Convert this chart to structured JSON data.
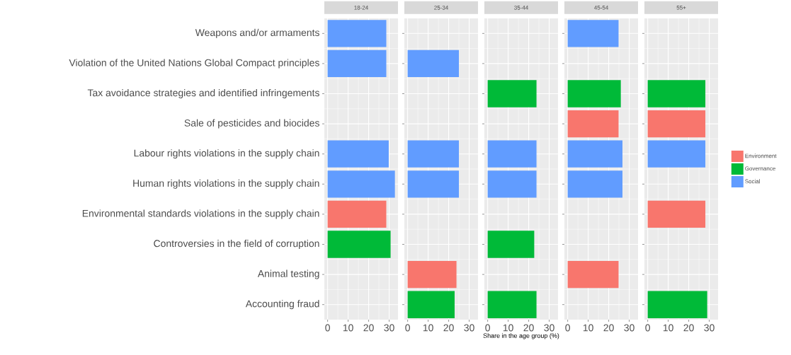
{
  "chart_data": [
    {
      "type": "bar",
      "orientation": "horizontal",
      "title": "18-24",
      "categories": [
        "Weapons and/or armaments",
        "Violation of the United Nations Global Compact principles",
        "Tax avoidance strategies and identified infringements",
        "Sale of pesticides and biocides",
        "Labour rights violations in the supply chain",
        "Human rights violations in the supply chain",
        "Environmental standards violations in the supply chain",
        "Controversies in the field of corruption",
        "Animal testing",
        "Accounting fraud"
      ],
      "series": [
        {
          "color": "#f8766d",
          "values": [
            null,
            null,
            null,
            null,
            null,
            null,
            28.6,
            null,
            null,
            null
          ]
        },
        {
          "color": "#00ba38",
          "values": [
            null,
            null,
            null,
            null,
            null,
            null,
            null,
            30.7,
            null,
            null
          ]
        },
        {
          "color": "#619cff",
          "values": [
            28.6,
            28.6,
            null,
            null,
            29.8,
            32.8,
            null,
            null,
            null,
            null
          ]
        }
      ],
      "xlim": [
        -1.6,
        34.3
      ],
      "xticks": [
        0,
        10,
        20,
        30
      ],
      "grid": true
    },
    {
      "type": "bar",
      "orientation": "horizontal",
      "title": "25-34",
      "categories": [
        null,
        null,
        null,
        null,
        null,
        null,
        null,
        null,
        null,
        null
      ],
      "series": [
        {
          "color": "#f8766d",
          "values": [
            null,
            null,
            null,
            null,
            null,
            null,
            null,
            null,
            23.8,
            null
          ]
        },
        {
          "color": "#00ba38",
          "values": [
            null,
            null,
            null,
            null,
            null,
            null,
            null,
            null,
            null,
            22.9
          ]
        },
        {
          "color": "#619cff",
          "values": [
            null,
            25,
            null,
            null,
            25,
            25,
            null,
            null,
            null,
            null
          ]
        }
      ],
      "xlim": [
        -1.6,
        34.3
      ],
      "xticks": [
        0,
        10,
        20,
        30
      ],
      "grid": true,
      "tick_labels": "x"
    },
    {
      "type": "bar",
      "orientation": "horizontal",
      "title": "35-44",
      "xlabel": "Share in the age group (%)",
      "categories": [
        null,
        null,
        null,
        null,
        null,
        null,
        null,
        null,
        null,
        null
      ],
      "series": [
        {
          "color": "#00ba38",
          "values": [
            null,
            null,
            23.8,
            null,
            null,
            null,
            null,
            22.7,
            null,
            23.8
          ]
        },
        {
          "color": "#619cff",
          "values": [
            null,
            null,
            null,
            null,
            23.8,
            23.8,
            null,
            null,
            null,
            null
          ]
        }
      ],
      "xlim": [
        -1.6,
        34.3
      ],
      "xticks": [
        0,
        10,
        20,
        30
      ],
      "grid": true,
      "tick_labels": "x"
    },
    {
      "type": "bar",
      "orientation": "horizontal",
      "title": "45-54",
      "categories": [
        null,
        null,
        null,
        null,
        null,
        null,
        null,
        null,
        null,
        null
      ],
      "series": [
        {
          "color": "#f8766d",
          "values": [
            null,
            null,
            null,
            24.8,
            null,
            null,
            null,
            null,
            24.8,
            null
          ]
        },
        {
          "color": "#00ba38",
          "values": [
            null,
            null,
            25.9,
            null,
            null,
            null,
            null,
            null,
            null,
            null
          ]
        },
        {
          "color": "#619cff",
          "values": [
            24.8,
            null,
            null,
            null,
            26.7,
            26.7,
            null,
            null,
            null,
            null
          ]
        }
      ],
      "xlim": [
        -1.6,
        34.3
      ],
      "xticks": [
        0,
        10,
        20,
        30
      ],
      "grid": true,
      "tick_labels": "x"
    },
    {
      "type": "bar",
      "orientation": "horizontal",
      "title": "55+",
      "categories": [
        null,
        null,
        null,
        null,
        null,
        null,
        null,
        null,
        null,
        null
      ],
      "series": [
        {
          "name": "Environment",
          "color": "#f8766d",
          "values": [
            null,
            null,
            null,
            28.1,
            null,
            null,
            28.1,
            null,
            null,
            null
          ]
        },
        {
          "name": "Governance",
          "color": "#00ba38",
          "values": [
            null,
            null,
            28.1,
            null,
            null,
            null,
            null,
            null,
            null,
            29
          ]
        },
        {
          "name": "Social",
          "color": "#619cff",
          "values": [
            null,
            null,
            null,
            null,
            28.1,
            null,
            null,
            null,
            null,
            null
          ]
        }
      ],
      "xlim": [
        -1.6,
        34.3
      ],
      "xticks": [
        0,
        10,
        20,
        30
      ],
      "grid": true,
      "tick_labels": "x",
      "legend": "right"
    }
  ]
}
